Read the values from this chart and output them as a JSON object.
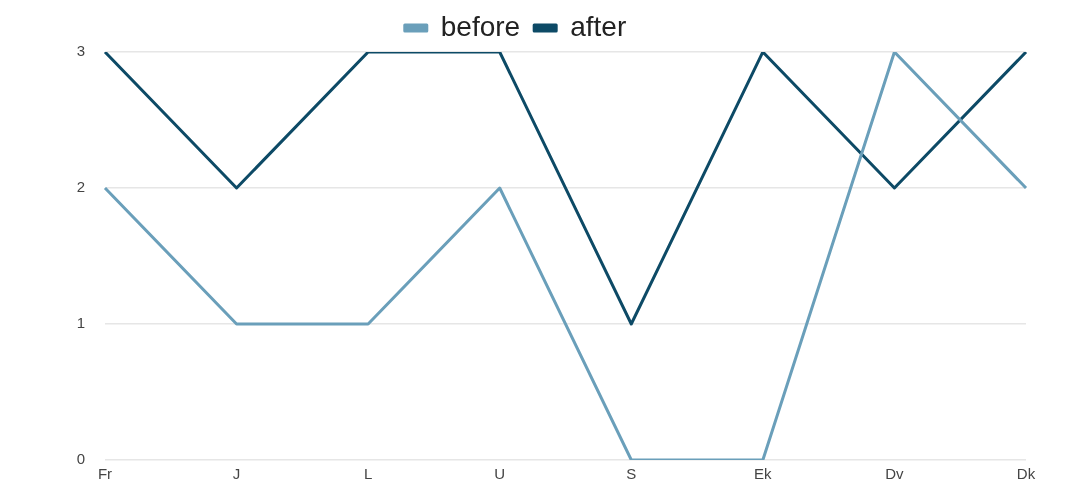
{
  "chart_data": {
    "type": "line",
    "categories": [
      "Fr",
      "J",
      "L",
      "U",
      "S",
      "Ek",
      "Dv",
      "Dk"
    ],
    "series": [
      {
        "name": "before",
        "color": "#6a9fba",
        "values": [
          2,
          1,
          1,
          2,
          0,
          0,
          3,
          2
        ]
      },
      {
        "name": "after",
        "color": "#0d4a66",
        "values": [
          3,
          2,
          3,
          3,
          1,
          3,
          2,
          3
        ]
      }
    ],
    "ylim": [
      0,
      3
    ],
    "yticks": [
      0,
      1,
      2,
      3
    ],
    "grid": "y",
    "legend": "top",
    "marker": "none",
    "line_style": "solid"
  }
}
